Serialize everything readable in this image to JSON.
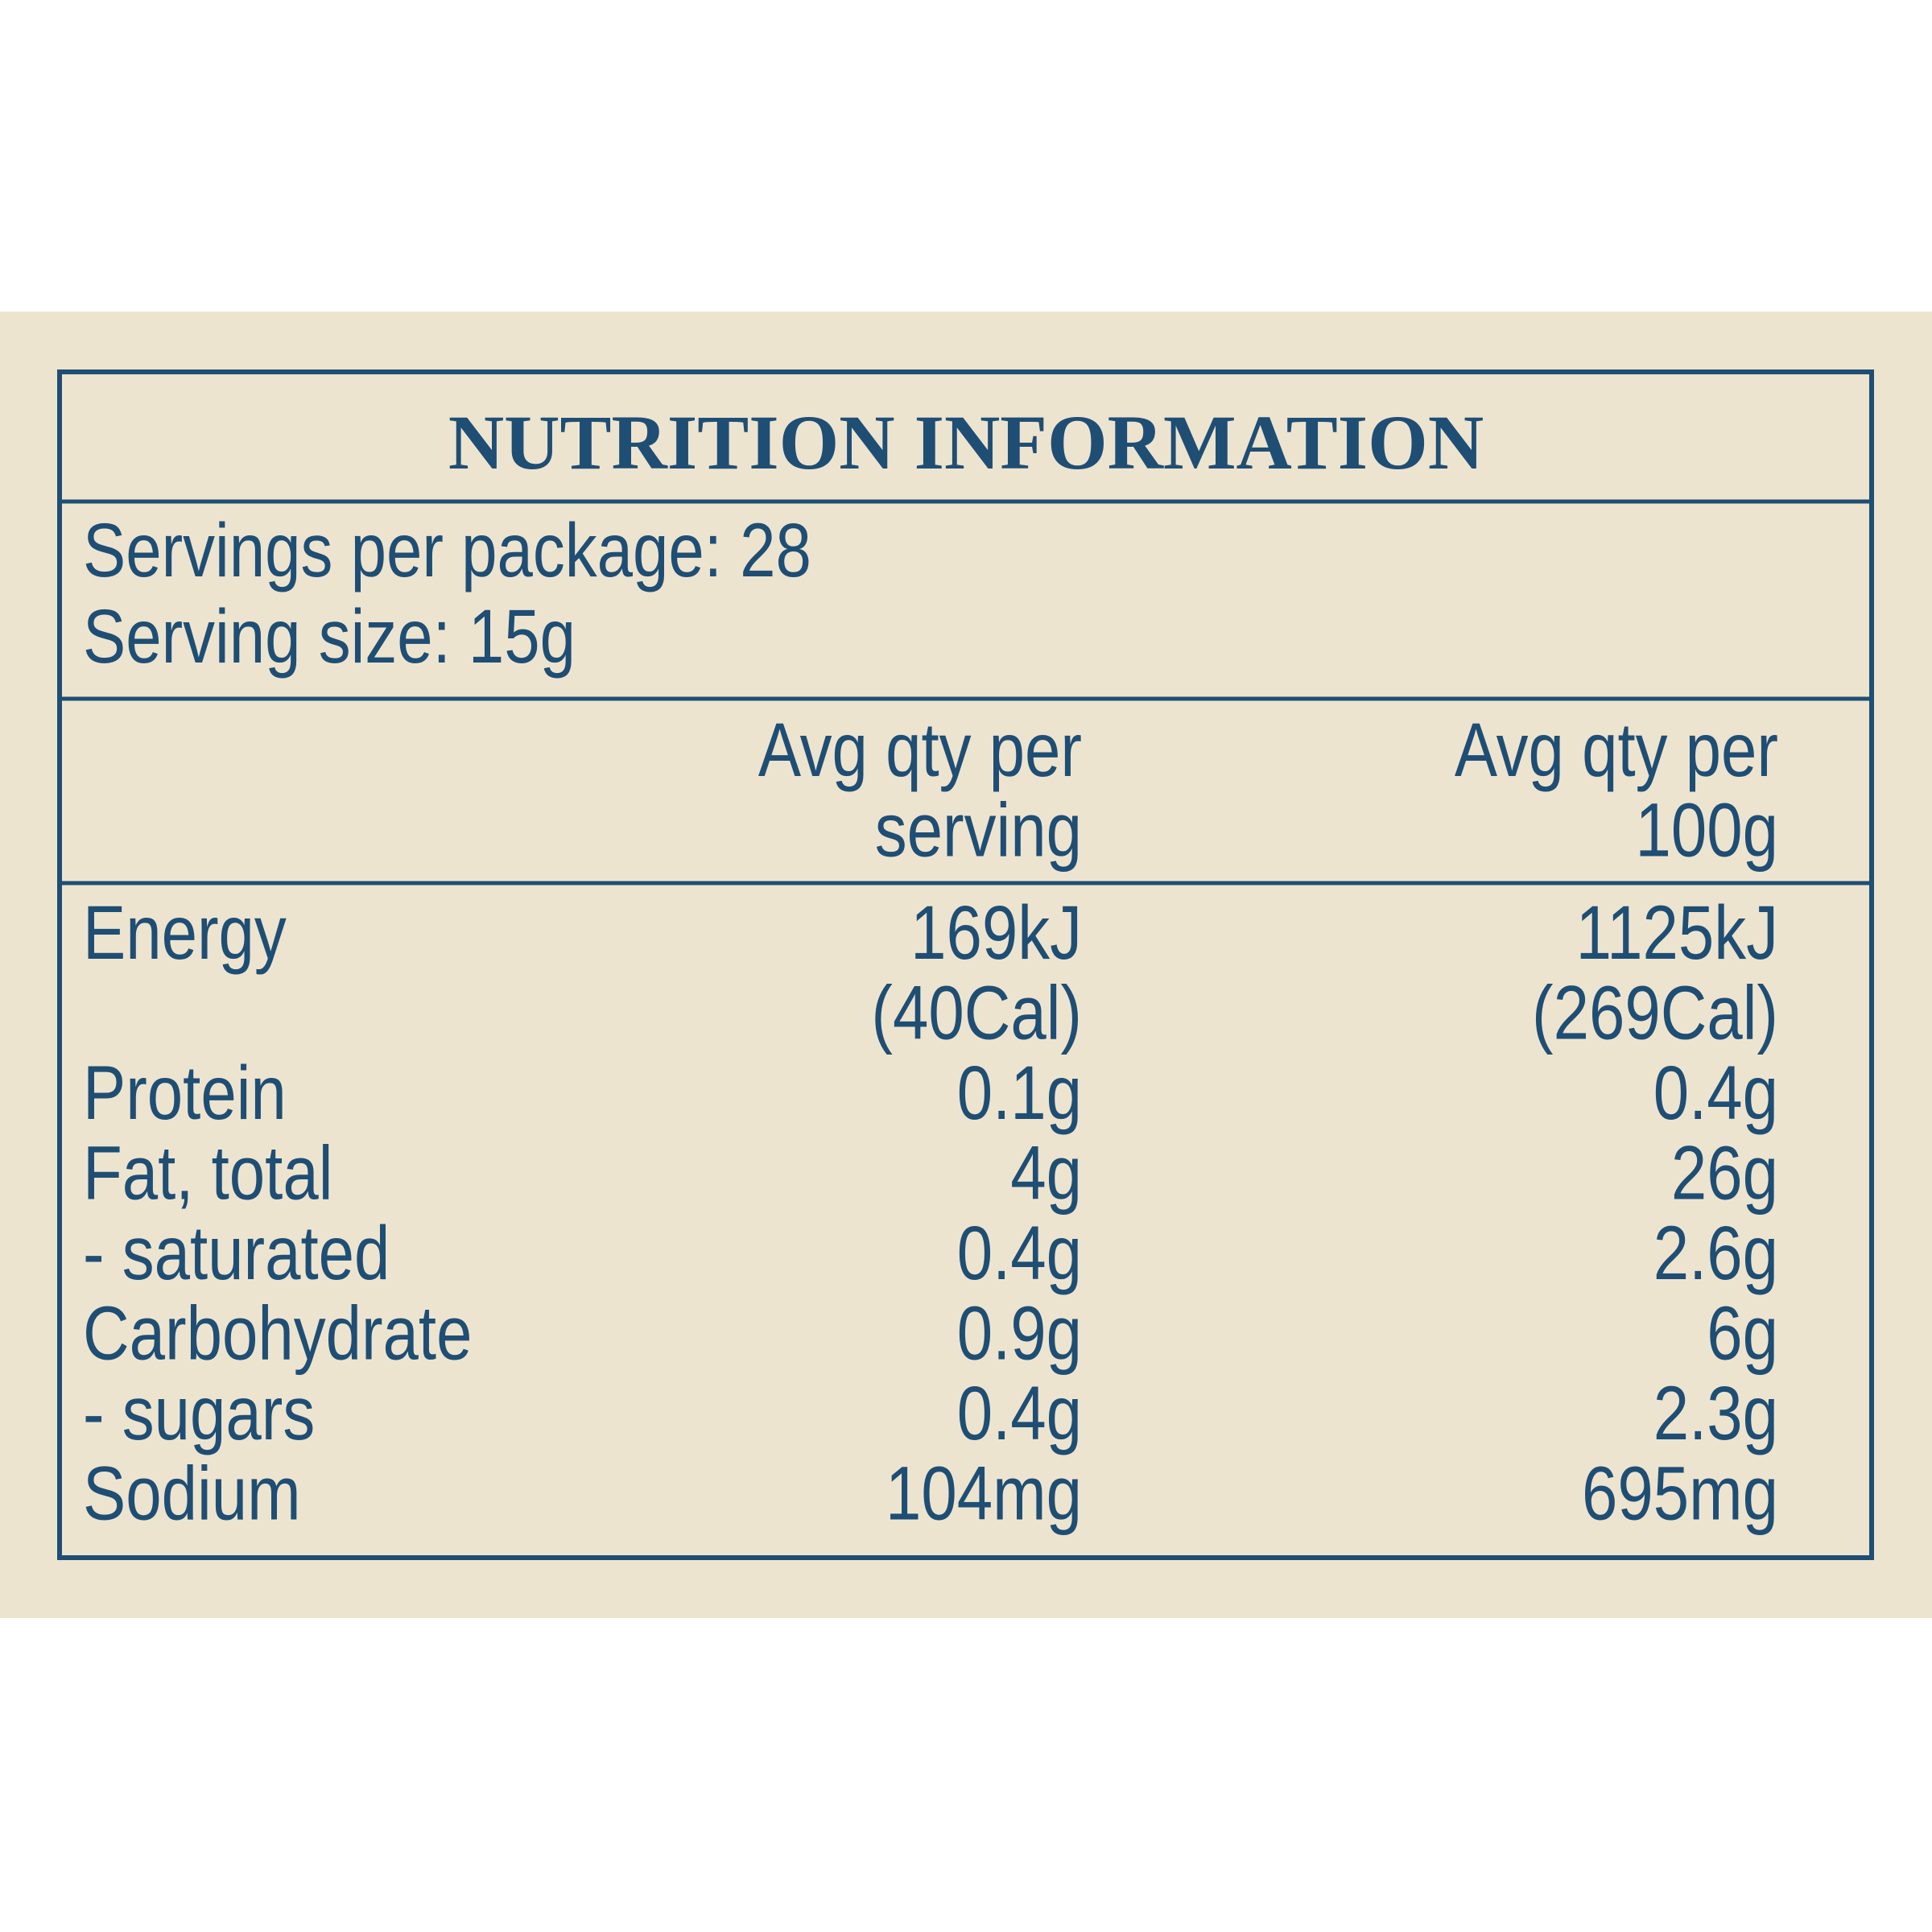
{
  "title": "NUTRITION INFORMATION",
  "servings": [
    "Servings per package: 28",
    "Serving size: 15g"
  ],
  "header": {
    "per_serving": [
      "Avg qty per",
      "serving"
    ],
    "per_100g": [
      "Avg qty per",
      "100g"
    ]
  },
  "rows": [
    {
      "label": "Energy",
      "per_serving": [
        "169kJ",
        "(40Cal)"
      ],
      "per_100g": [
        "1125kJ",
        "(269Cal)"
      ]
    },
    {
      "label": "Protein",
      "per_serving": [
        "0.1g"
      ],
      "per_100g": [
        "0.4g"
      ]
    },
    {
      "label": "Fat, total",
      "per_serving": [
        "4g"
      ],
      "per_100g": [
        "26g"
      ]
    },
    {
      "label": "- saturated",
      "per_serving": [
        "0.4g"
      ],
      "per_100g": [
        "2.6g"
      ]
    },
    {
      "label": "Carbohydrate",
      "per_serving": [
        "0.9g"
      ],
      "per_100g": [
        "6g"
      ]
    },
    {
      "label": "- sugars",
      "per_serving": [
        "0.4g"
      ],
      "per_100g": [
        "2.3g"
      ]
    },
    {
      "label": "Sodium",
      "per_serving": [
        "104mg"
      ],
      "per_100g": [
        "695mg"
      ]
    }
  ]
}
